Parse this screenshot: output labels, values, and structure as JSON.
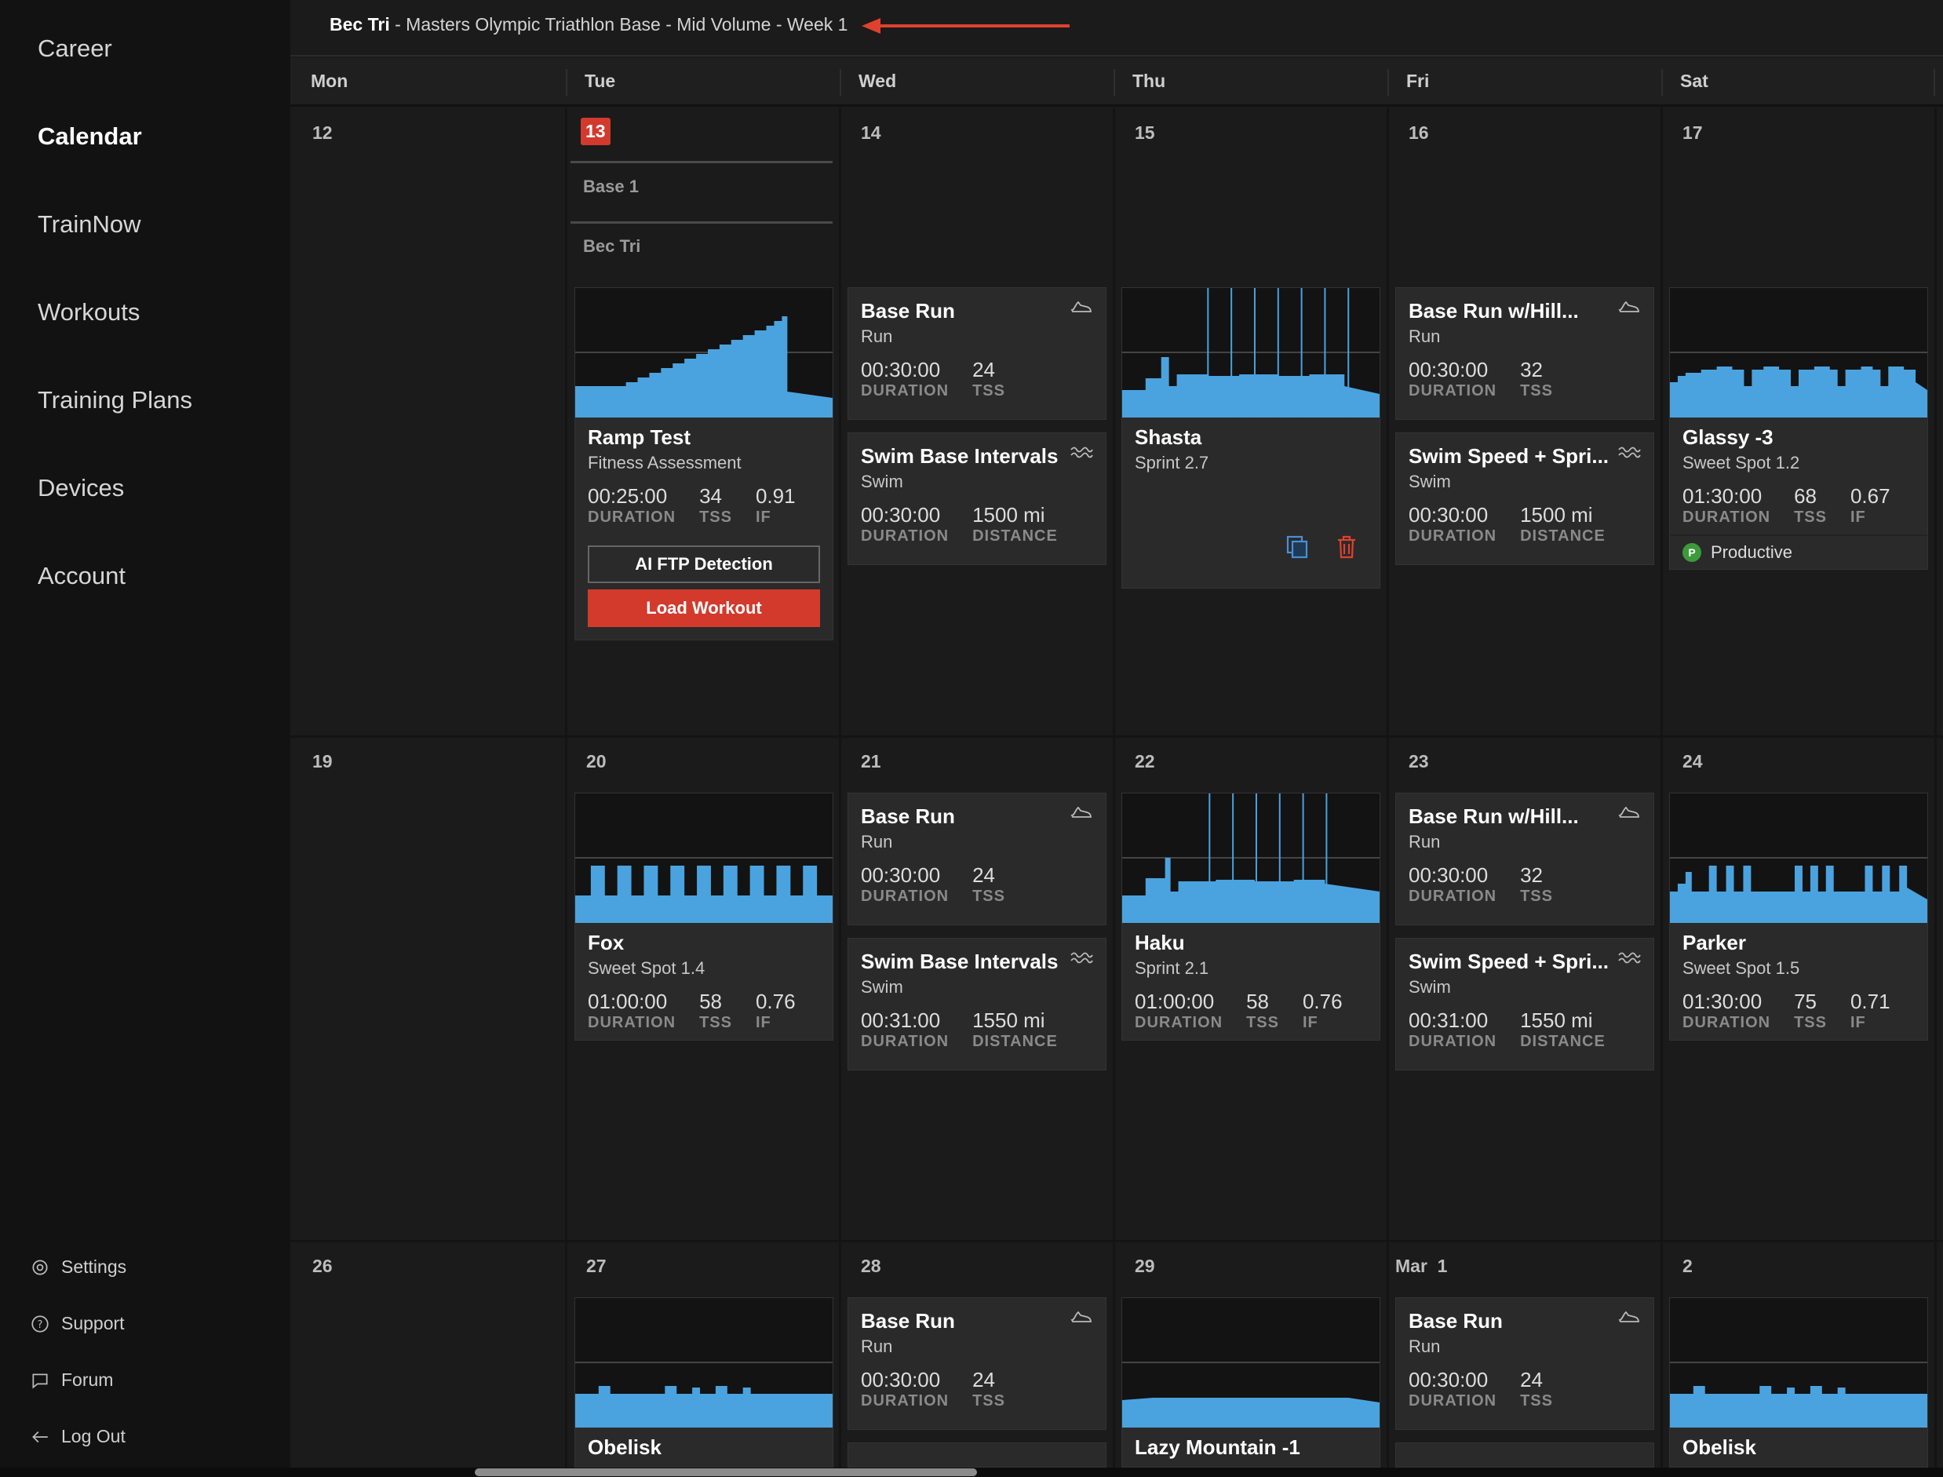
{
  "sidebar": {
    "items": [
      {
        "label": "Career"
      },
      {
        "label": "Calendar"
      },
      {
        "label": "TrainNow"
      },
      {
        "label": "Workouts"
      },
      {
        "label": "Training Plans"
      },
      {
        "label": "Devices"
      },
      {
        "label": "Account"
      }
    ],
    "footer": [
      {
        "label": "Settings",
        "icon": "gear-icon"
      },
      {
        "label": "Support",
        "icon": "help-icon"
      },
      {
        "label": "Forum",
        "icon": "chat-icon"
      },
      {
        "label": "Log Out",
        "icon": "logout-arrow-icon"
      }
    ]
  },
  "header": {
    "plan_owner": "Bec Tri",
    "plan_name": " - Masters Olympic Triathlon Base - Mid Volume - Week 1"
  },
  "days": [
    "Mon",
    "Tue",
    "Wed",
    "Thu",
    "Fri",
    "Sat"
  ],
  "weeks": [
    {
      "dates": [
        "12",
        "13",
        "14",
        "15",
        "16",
        "17"
      ]
    },
    {
      "dates": [
        "19",
        "20",
        "21",
        "22",
        "23",
        "24"
      ]
    },
    {
      "dates": [
        "26",
        "27",
        "28",
        "29",
        "Mar  1",
        "2"
      ]
    }
  ],
  "phases": {
    "block": "Base 1",
    "plan": "Bec Tri"
  },
  "workouts": {
    "ramp_test": {
      "title": "Ramp Test",
      "sub": "Fitness Assessment",
      "duration": "00:25:00",
      "tss": "34",
      "if": "0.91",
      "btn_ftp": "AI FTP Detection",
      "btn_load": "Load Workout"
    },
    "wed1_run": {
      "title": "Base Run",
      "sub": "Run",
      "duration": "00:30:00",
      "tss": "24"
    },
    "wed1_swim": {
      "title": "Swim Base Intervals",
      "sub": "Swim",
      "duration": "00:30:00",
      "distance": "1500 mi"
    },
    "shasta": {
      "title": "Shasta",
      "sub": "Sprint 2.7"
    },
    "fri1_run": {
      "title": "Base Run w/Hill...",
      "sub": "Run",
      "duration": "00:30:00",
      "tss": "32"
    },
    "fri1_swim": {
      "title": "Swim Speed + Spri...",
      "sub": "Swim",
      "duration": "00:30:00",
      "distance": "1500 mi"
    },
    "glassy": {
      "title": "Glassy -3",
      "sub": "Sweet Spot 1.2",
      "duration": "01:30:00",
      "tss": "68",
      "if": "0.67",
      "badge": "P",
      "status": "Productive"
    },
    "fox": {
      "title": "Fox",
      "sub": "Sweet Spot 1.4",
      "duration": "01:00:00",
      "tss": "58",
      "if": "0.76"
    },
    "wed2_run": {
      "title": "Base Run",
      "sub": "Run",
      "duration": "00:30:00",
      "tss": "24"
    },
    "wed2_swim": {
      "title": "Swim Base Intervals",
      "sub": "Swim",
      "duration": "00:31:00",
      "distance": "1550 mi"
    },
    "haku": {
      "title": "Haku",
      "sub": "Sprint 2.1",
      "duration": "01:00:00",
      "tss": "58",
      "if": "0.76"
    },
    "fri2_run": {
      "title": "Base Run w/Hill...",
      "sub": "Run",
      "duration": "00:30:00",
      "tss": "32"
    },
    "fri2_swim": {
      "title": "Swim Speed + Spri...",
      "sub": "Swim",
      "duration": "00:31:00",
      "distance": "1550 mi"
    },
    "parker": {
      "title": "Parker",
      "sub": "Sweet Spot 1.5",
      "duration": "01:30:00",
      "tss": "75",
      "if": "0.71"
    },
    "obelisk1": {
      "title": "Obelisk"
    },
    "wed3_run": {
      "title": "Base Run",
      "sub": "Run",
      "duration": "00:30:00",
      "tss": "24"
    },
    "lazy": {
      "title": "Lazy Mountain -1"
    },
    "fri3_run": {
      "title": "Base Run",
      "sub": "Run",
      "duration": "00:30:00",
      "tss": "24"
    },
    "obelisk2": {
      "title": "Obelisk"
    }
  },
  "labels": {
    "duration": "DURATION",
    "tss": "TSS",
    "if": "IF",
    "distance": "DISTANCE"
  },
  "colors": {
    "accent": "#d33a2c",
    "graph": "#4aa3df",
    "productive": "#3d9a3a"
  }
}
